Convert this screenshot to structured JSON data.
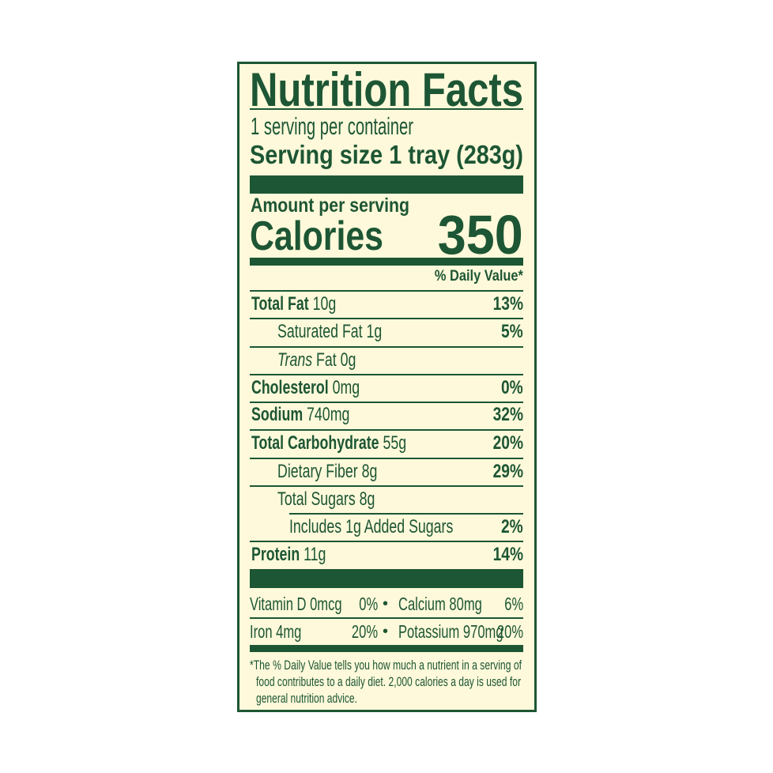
{
  "colors": {
    "ink": "#1d5634",
    "background": "#fdf9da"
  },
  "title": "Nutrition Facts",
  "servings_per_container": "1 serving per container",
  "serving_size": "Serving size 1 tray (283g)",
  "amount_per_serving": "Amount per serving",
  "calories_label": "Calories",
  "calories_value": "350",
  "daily_value_header": "% Daily Value*",
  "nutrients": [
    {
      "bold_label": "Total Fat",
      "label": "10g",
      "dv": "13%",
      "indent": 0
    },
    {
      "label": "Saturated Fat 1g",
      "dv": "5%",
      "indent": 1
    },
    {
      "italic_label": "Trans",
      "label": "Fat 0g",
      "dv": "",
      "indent": 1
    },
    {
      "bold_label": "Cholesterol",
      "label": "0mg",
      "dv": "0%",
      "indent": 0
    },
    {
      "bold_label": "Sodium",
      "label": "740mg",
      "dv": "32%",
      "indent": 0
    },
    {
      "bold_label": "Total Carbohydrate",
      "label": "55g",
      "dv": "20%",
      "indent": 0
    },
    {
      "label": "Dietary Fiber 8g",
      "dv": "29%",
      "indent": 1
    },
    {
      "label": "Total Sugars 8g",
      "dv": "",
      "indent": 1
    },
    {
      "label": "Includes 1g Added Sugars",
      "dv": "2%",
      "indent": 2
    },
    {
      "bold_label": "Protein",
      "label": "11g",
      "dv": "14%",
      "indent": 0
    }
  ],
  "micronutrients": [
    {
      "left_label": "Vitamin D 0mcg",
      "left_dv": "0%",
      "right_label": "Calcium 80mg",
      "right_dv": "6%"
    },
    {
      "left_label": "Iron 4mg",
      "left_dv": "20%",
      "right_label": "Potassium 970mg",
      "right_dv": "20%"
    }
  ],
  "bullet": "•",
  "footnote": [
    "*The % Daily Value tells you how much a nutrient in a serving of",
    "food contributes to a daily diet. 2,000 calories a day is used for",
    "general nutrition advice."
  ]
}
